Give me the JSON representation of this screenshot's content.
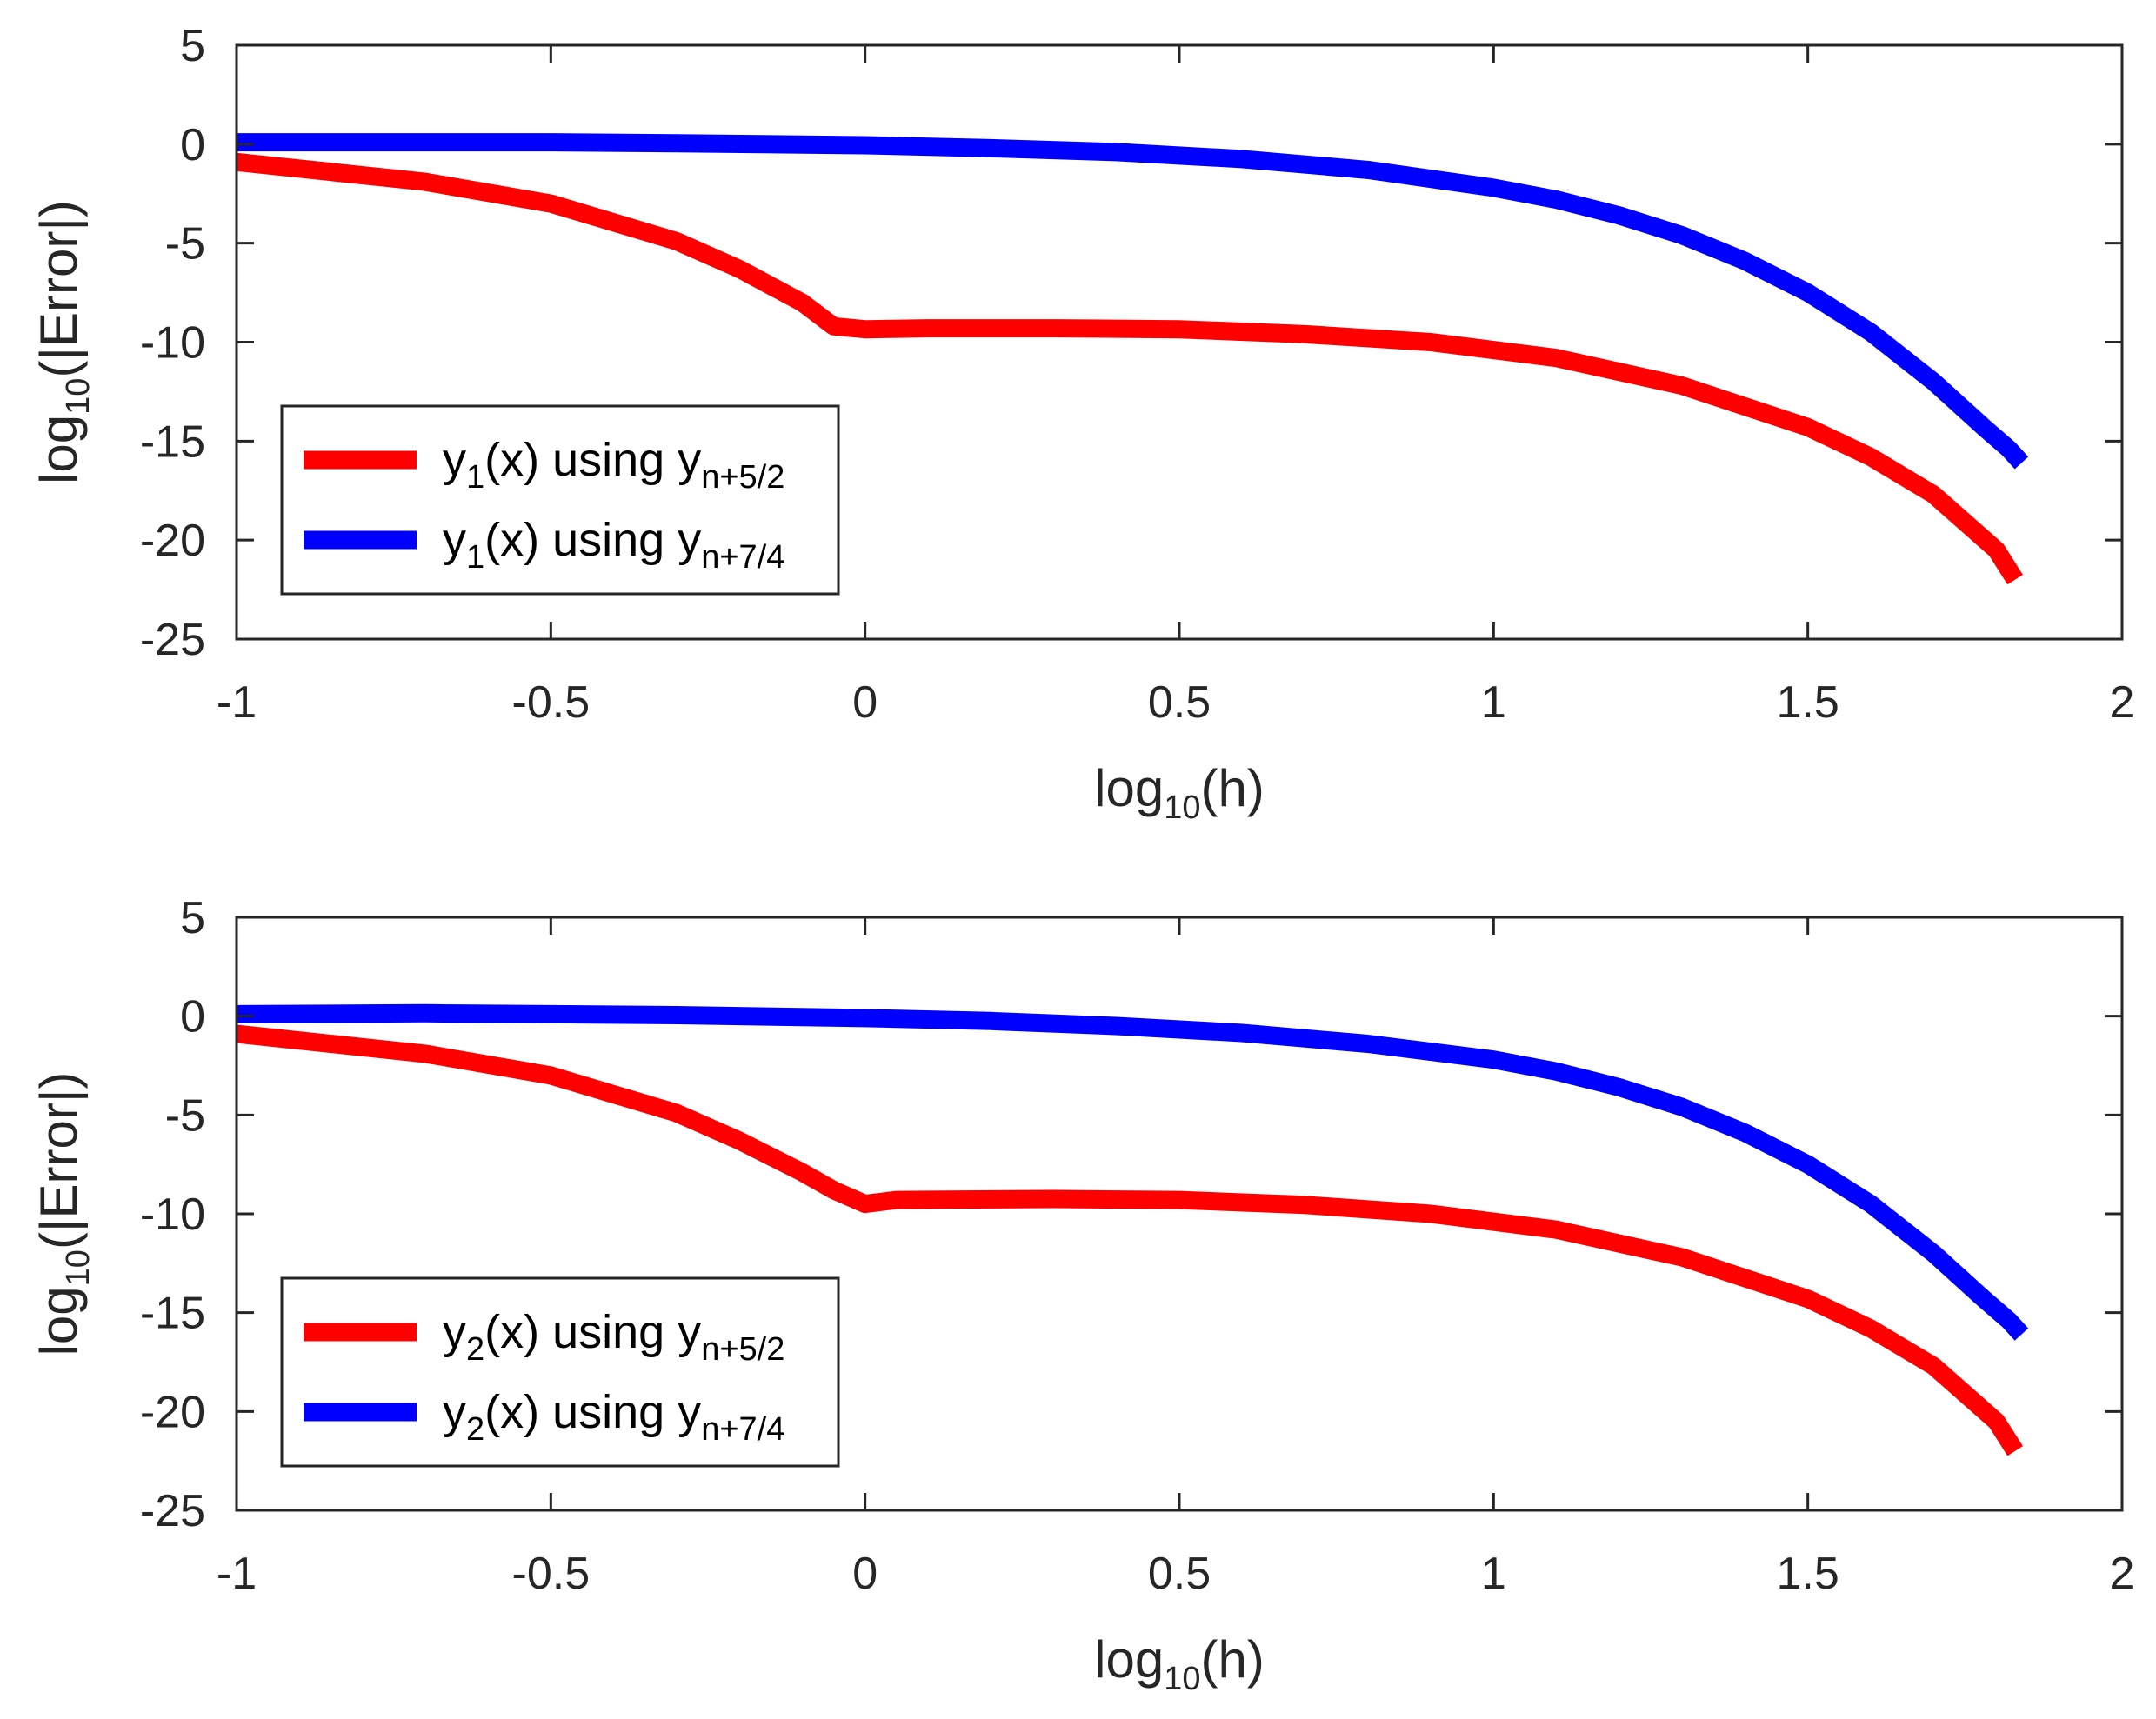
{
  "chart_data": [
    {
      "type": "line",
      "xlabel": {
        "base": "log",
        "sub": "10",
        "rest": "(h)"
      },
      "ylabel": {
        "base": "log",
        "sub": "10",
        "rest": "(|Error|)"
      },
      "xlim": [
        -1,
        2
      ],
      "ylim": [
        -25,
        5
      ],
      "xticks": [
        -1,
        -0.5,
        0,
        0.5,
        1,
        1.5,
        2
      ],
      "xtick_labels": [
        "-1",
        "-0.5",
        "0",
        "0.5",
        "1",
        "1.5",
        "2"
      ],
      "yticks": [
        -25,
        -20,
        -15,
        -10,
        -5,
        0,
        5
      ],
      "ytick_labels": [
        "-25",
        "-20",
        "-15",
        "-10",
        "-5",
        "0",
        "5"
      ],
      "legend_position": "bottom-left",
      "series": [
        {
          "name": "y1(x) using yn+5/2",
          "label_parts": [
            "y",
            "1",
            "(x) using y",
            "n+5/2"
          ],
          "color": "#ff0000",
          "x": [
            -1,
            -0.7,
            -0.5,
            -0.3,
            -0.2,
            -0.1,
            -0.05,
            0,
            0.1,
            0.3,
            0.5,
            0.7,
            0.9,
            1.1,
            1.3,
            1.5,
            1.6,
            1.7,
            1.8,
            1.83
          ],
          "y": [
            -0.9,
            -1.9,
            -3.0,
            -4.9,
            -6.3,
            -8.0,
            -9.2,
            -9.35,
            -9.3,
            -9.3,
            -9.35,
            -9.6,
            -10.0,
            -10.8,
            -12.2,
            -14.3,
            -15.8,
            -17.7,
            -20.5,
            -22.0
          ]
        },
        {
          "name": "y1(x) using yn+7/4",
          "label_parts": [
            "y",
            "1",
            "(x) using y",
            "n+7/4"
          ],
          "color": "#0000ff",
          "x": [
            -1,
            -0.7,
            -0.5,
            -0.3,
            0,
            0.2,
            0.4,
            0.6,
            0.8,
            1.0,
            1.1,
            1.2,
            1.3,
            1.4,
            1.5,
            1.6,
            1.7,
            1.78,
            1.82,
            1.84
          ],
          "y": [
            0.1,
            0.1,
            0.1,
            0.05,
            -0.05,
            -0.2,
            -0.4,
            -0.75,
            -1.3,
            -2.2,
            -2.8,
            -3.6,
            -4.6,
            -5.9,
            -7.5,
            -9.5,
            -12.0,
            -14.3,
            -15.4,
            -16.1
          ]
        }
      ]
    },
    {
      "type": "line",
      "xlabel": {
        "base": "log",
        "sub": "10",
        "rest": "(h)"
      },
      "ylabel": {
        "base": "log",
        "sub": "10",
        "rest": "(|Error|)"
      },
      "xlim": [
        -1,
        2
      ],
      "ylim": [
        -25,
        5
      ],
      "xticks": [
        -1,
        -0.5,
        0,
        0.5,
        1,
        1.5,
        2
      ],
      "xtick_labels": [
        "-1",
        "-0.5",
        "0",
        "0.5",
        "1",
        "1.5",
        "2"
      ],
      "yticks": [
        -25,
        -20,
        -15,
        -10,
        -5,
        0,
        5
      ],
      "ytick_labels": [
        "-25",
        "-20",
        "-15",
        "-10",
        "-5",
        "0",
        "5"
      ],
      "legend_position": "bottom-left",
      "series": [
        {
          "name": "y2(x) using yn+5/2",
          "label_parts": [
            "y",
            "2",
            "(x) using y",
            "n+5/2"
          ],
          "color": "#ff0000",
          "x": [
            -1,
            -0.7,
            -0.5,
            -0.3,
            -0.2,
            -0.1,
            -0.05,
            0,
            0.05,
            0.3,
            0.5,
            0.7,
            0.9,
            1.1,
            1.3,
            1.5,
            1.6,
            1.7,
            1.8,
            1.83
          ],
          "y": [
            -0.9,
            -1.9,
            -3.0,
            -4.9,
            -6.3,
            -7.9,
            -8.8,
            -9.5,
            -9.3,
            -9.25,
            -9.3,
            -9.55,
            -10.0,
            -10.8,
            -12.2,
            -14.3,
            -15.8,
            -17.7,
            -20.5,
            -22.0
          ]
        },
        {
          "name": "y2(x) using yn+7/4",
          "label_parts": [
            "y",
            "2",
            "(x) using y",
            "n+7/4"
          ],
          "color": "#0000ff",
          "x": [
            -1,
            -0.7,
            -0.5,
            -0.3,
            0,
            0.2,
            0.4,
            0.6,
            0.8,
            1.0,
            1.1,
            1.2,
            1.3,
            1.4,
            1.5,
            1.6,
            1.7,
            1.78,
            1.82,
            1.84
          ],
          "y": [
            0.1,
            0.15,
            0.1,
            0.05,
            -0.1,
            -0.25,
            -0.5,
            -0.85,
            -1.4,
            -2.2,
            -2.8,
            -3.6,
            -4.6,
            -5.9,
            -7.5,
            -9.5,
            -12.0,
            -14.3,
            -15.4,
            -16.1
          ]
        }
      ]
    }
  ]
}
